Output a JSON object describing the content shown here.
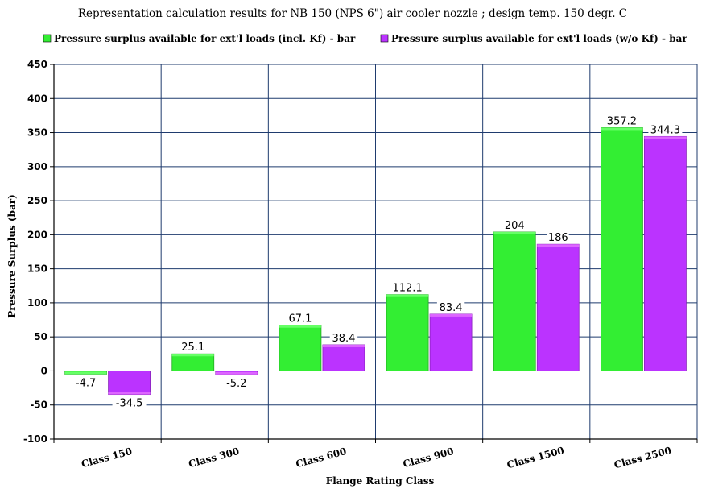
{
  "colors": {
    "series_1": "#33ee33",
    "series_1_top": "#66ff66",
    "series_1_edge": "#22aa22",
    "series_2": "#bb33ff",
    "series_2_top": "#dd66ff",
    "series_2_edge": "#8822bb",
    "grid": "#1f3b6e",
    "axis": "#000000"
  },
  "chart_data": {
    "type": "bar",
    "title": "Representation calculation results for NB 150 (NPS 6\") air cooler nozzle ; design temp. 150 degr. C",
    "xlabel": "Flange Rating Class",
    "ylabel": "Pressure Surplus (bar)",
    "categories": [
      "Class 150",
      "Class 300",
      "Class 600",
      "Class 900",
      "Class 1500",
      "Class 2500"
    ],
    "series": [
      {
        "name": "Pressure surplus available for ext'l loads (incl. Kf) - bar",
        "values": [
          -4.7,
          25.1,
          67.1,
          112.1,
          204,
          357.2
        ],
        "labels": [
          "-4.7",
          "25.1",
          "67.1",
          "112.1",
          "204",
          "357.2"
        ]
      },
      {
        "name": "Pressure surplus available for ext'l loads (w/o Kf) - bar",
        "values": [
          -34.5,
          -5.2,
          38.4,
          83.4,
          186,
          344.3
        ],
        "labels": [
          "-34.5",
          "-5.2",
          "38.4",
          "83.4",
          "186",
          "344.3"
        ]
      }
    ],
    "ylim": [
      -100,
      450
    ],
    "yticks": [
      -100,
      -50,
      0,
      50,
      100,
      150,
      200,
      250,
      300,
      350,
      400,
      450
    ],
    "grid": true,
    "legend_position": "top"
  }
}
